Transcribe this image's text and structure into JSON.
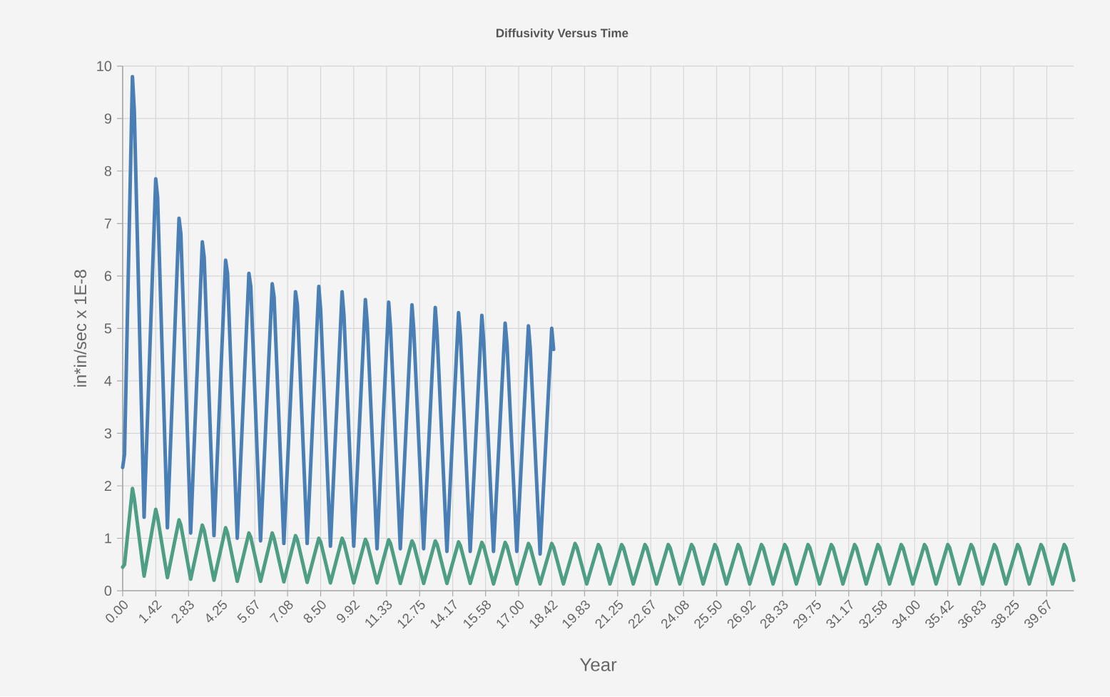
{
  "chart_data": {
    "type": "line",
    "title": "Diffusivity Versus Time",
    "xlabel": "Year",
    "ylabel": "in*in/sec x 1E-8",
    "xlim": [
      0,
      40.83
    ],
    "ylim": [
      0,
      10
    ],
    "xticks": [
      {
        "value": 0,
        "label": "0.00"
      },
      {
        "value": 1.42,
        "label": "1.42"
      },
      {
        "value": 2.83,
        "label": "2.83"
      },
      {
        "value": 4.25,
        "label": "4.25"
      },
      {
        "value": 5.67,
        "label": "5.67"
      },
      {
        "value": 7.08,
        "label": "7.08"
      },
      {
        "value": 8.5,
        "label": "8.50"
      },
      {
        "value": 9.92,
        "label": "9.92"
      },
      {
        "value": 11.33,
        "label": "11.33"
      },
      {
        "value": 12.75,
        "label": "12.75"
      },
      {
        "value": 14.17,
        "label": "14.17"
      },
      {
        "value": 15.58,
        "label": "15.58"
      },
      {
        "value": 17,
        "label": "17.00"
      },
      {
        "value": 18.42,
        "label": "18.42"
      },
      {
        "value": 19.83,
        "label": "19.83"
      },
      {
        "value": 21.25,
        "label": "21.25"
      },
      {
        "value": 22.67,
        "label": "22.67"
      },
      {
        "value": 24.08,
        "label": "24.08"
      },
      {
        "value": 25.5,
        "label": "25.50"
      },
      {
        "value": 26.92,
        "label": "26.92"
      },
      {
        "value": 28.33,
        "label": "28.33"
      },
      {
        "value": 29.75,
        "label": "29.75"
      },
      {
        "value": 31.17,
        "label": "31.17"
      },
      {
        "value": 32.58,
        "label": "32.58"
      },
      {
        "value": 34,
        "label": "34.00"
      },
      {
        "value": 35.42,
        "label": "35.42"
      },
      {
        "value": 36.83,
        "label": "36.83"
      },
      {
        "value": 38.25,
        "label": "38.25"
      },
      {
        "value": 39.67,
        "label": "39.67"
      }
    ],
    "yticks": [
      0,
      1,
      2,
      3,
      4,
      5,
      6,
      7,
      8,
      9,
      10
    ],
    "grid": true,
    "marker": "none",
    "line_style": "solid",
    "series": [
      {
        "color": "#4a7fb5",
        "x": [
          0,
          0.08,
          0.42,
          0.5,
          0.92,
          1.42,
          1.5,
          1.92,
          2.42,
          2.5,
          2.92,
          3.42,
          3.5,
          3.92,
          4.42,
          4.5,
          4.92,
          5.42,
          5.5,
          5.92,
          6.42,
          6.5,
          6.92,
          7.42,
          7.5,
          7.92,
          8.42,
          8.5,
          8.92,
          9.42,
          9.5,
          9.92,
          10.42,
          10.5,
          10.92,
          11.42,
          11.5,
          11.92,
          12.42,
          12.5,
          12.92,
          13.42,
          13.5,
          13.92,
          14.42,
          14.5,
          14.92,
          15.42,
          15.5,
          15.92,
          16.42,
          16.5,
          16.92,
          17.42,
          17.5,
          17.92,
          18.42,
          18.5
        ],
        "values": [
          2.35,
          2.6,
          9.8,
          9.15,
          1.4,
          7.85,
          7.5,
          1.2,
          7.1,
          6.8,
          1.1,
          6.65,
          6.35,
          1.05,
          6.3,
          6.05,
          1.0,
          6.05,
          5.8,
          0.95,
          5.85,
          5.6,
          0.9,
          5.7,
          5.45,
          0.9,
          5.8,
          5.35,
          0.85,
          5.7,
          5.25,
          0.85,
          5.55,
          5.1,
          0.8,
          5.5,
          5.0,
          0.8,
          5.45,
          4.95,
          0.8,
          5.4,
          4.9,
          0.75,
          5.3,
          4.85,
          0.75,
          5.25,
          4.75,
          0.75,
          5.1,
          4.7,
          0.75,
          5.05,
          4.6,
          0.7,
          5.0,
          4.6
        ]
      },
      {
        "color": "#4e9e85",
        "x": [
          0,
          0.08,
          0.42,
          0.5,
          0.92,
          1.42,
          1.5,
          1.92,
          2.42,
          2.5,
          2.92,
          3.42,
          3.5,
          3.92,
          4.42,
          4.5,
          4.92,
          5.42,
          5.5,
          5.92,
          6.42,
          6.5,
          6.92,
          7.42,
          7.5,
          7.92,
          8.42,
          8.5,
          8.92,
          9.42,
          9.5,
          9.92,
          10.42,
          10.5,
          10.92,
          11.42,
          11.5,
          11.92,
          12.42,
          12.5,
          12.92,
          13.42,
          13.5,
          13.92,
          14.42,
          14.5,
          14.92,
          15.42,
          15.5,
          15.92,
          16.42,
          16.5,
          16.92,
          17.42,
          17.5,
          17.92,
          18.42,
          18.5,
          18.92,
          19.42,
          19.5,
          19.92,
          20.42,
          20.5,
          20.92,
          21.42,
          21.5,
          21.92,
          22.42,
          22.5,
          22.92,
          23.42,
          23.5,
          23.92,
          24.42,
          24.5,
          24.92,
          25.42,
          25.5,
          25.92,
          26.42,
          26.5,
          26.92,
          27.42,
          27.5,
          27.92,
          28.42,
          28.5,
          28.92,
          29.42,
          29.5,
          29.92,
          30.42,
          30.5,
          30.92,
          31.42,
          31.5,
          31.92,
          32.42,
          32.5,
          32.92,
          33.42,
          33.5,
          33.92,
          34.42,
          34.5,
          34.92,
          35.42,
          35.5,
          35.92,
          36.42,
          36.5,
          36.92,
          37.42,
          37.5,
          37.92,
          38.42,
          38.5,
          38.92,
          39.42,
          39.5,
          39.92,
          40.42,
          40.5,
          40.83
        ],
        "values": [
          0.45,
          0.5,
          1.95,
          1.75,
          0.28,
          1.55,
          1.4,
          0.25,
          1.35,
          1.25,
          0.22,
          1.25,
          1.15,
          0.2,
          1.2,
          1.1,
          0.18,
          1.1,
          1.02,
          0.18,
          1.1,
          1.0,
          0.17,
          1.05,
          0.97,
          0.16,
          1.0,
          0.93,
          0.15,
          1.0,
          0.92,
          0.15,
          0.98,
          0.9,
          0.15,
          0.97,
          0.9,
          0.14,
          0.95,
          0.88,
          0.14,
          0.95,
          0.88,
          0.14,
          0.93,
          0.86,
          0.14,
          0.92,
          0.85,
          0.13,
          0.92,
          0.85,
          0.13,
          0.9,
          0.83,
          0.13,
          0.9,
          0.83,
          0.13,
          0.9,
          0.83,
          0.13,
          0.88,
          0.82,
          0.13,
          0.88,
          0.82,
          0.13,
          0.88,
          0.82,
          0.13,
          0.88,
          0.82,
          0.13,
          0.88,
          0.82,
          0.13,
          0.88,
          0.82,
          0.13,
          0.88,
          0.82,
          0.13,
          0.88,
          0.82,
          0.13,
          0.88,
          0.82,
          0.13,
          0.88,
          0.82,
          0.13,
          0.88,
          0.82,
          0.13,
          0.88,
          0.82,
          0.13,
          0.88,
          0.82,
          0.13,
          0.88,
          0.82,
          0.13,
          0.88,
          0.82,
          0.13,
          0.88,
          0.82,
          0.13,
          0.88,
          0.82,
          0.13,
          0.88,
          0.82,
          0.13,
          0.88,
          0.82,
          0.13,
          0.88,
          0.82,
          0.13,
          0.88,
          0.82,
          0.2
        ]
      }
    ]
  }
}
